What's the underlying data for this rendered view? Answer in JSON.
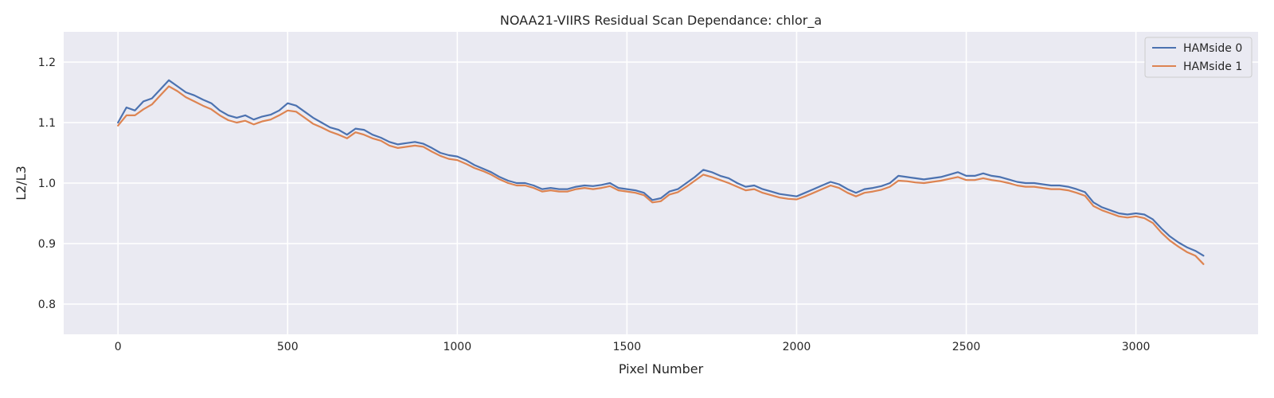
{
  "chart_data": {
    "type": "line",
    "title": "NOAA21-VIIRS Residual Scan Dependance: chlor_a",
    "xlabel": "Pixel Number",
    "ylabel": "L2/L3",
    "xlim": [
      -160,
      3360
    ],
    "ylim": [
      0.75,
      1.25
    ],
    "xticks": [
      0,
      500,
      1000,
      1500,
      2000,
      2500,
      3000
    ],
    "yticks": [
      0.8,
      0.9,
      1.0,
      1.1,
      1.2
    ],
    "xtick_labels": [
      "0",
      "500",
      "1000",
      "1500",
      "2000",
      "2500",
      "3000"
    ],
    "ytick_labels": [
      "0.8",
      "0.9",
      "1.0",
      "1.1",
      "1.2"
    ],
    "grid": true,
    "legend_position": "top-right",
    "x": [
      0,
      25,
      50,
      75,
      100,
      125,
      150,
      175,
      200,
      225,
      250,
      275,
      300,
      325,
      350,
      375,
      400,
      425,
      450,
      475,
      500,
      525,
      550,
      575,
      600,
      625,
      650,
      675,
      700,
      725,
      750,
      775,
      800,
      825,
      850,
      875,
      900,
      925,
      950,
      975,
      1000,
      1025,
      1050,
      1075,
      1100,
      1125,
      1150,
      1175,
      1200,
      1225,
      1250,
      1275,
      1300,
      1325,
      1350,
      1375,
      1400,
      1425,
      1450,
      1475,
      1500,
      1525,
      1550,
      1575,
      1600,
      1625,
      1650,
      1675,
      1700,
      1725,
      1750,
      1775,
      1800,
      1825,
      1850,
      1875,
      1900,
      1925,
      1950,
      1975,
      2000,
      2025,
      2050,
      2075,
      2100,
      2125,
      2150,
      2175,
      2200,
      2225,
      2250,
      2275,
      2300,
      2325,
      2350,
      2375,
      2400,
      2425,
      2450,
      2475,
      2500,
      2525,
      2550,
      2575,
      2600,
      2625,
      2650,
      2675,
      2700,
      2725,
      2750,
      2775,
      2800,
      2825,
      2850,
      2875,
      2900,
      2925,
      2950,
      2975,
      3000,
      3025,
      3050,
      3075,
      3100,
      3125,
      3150,
      3175,
      3199
    ],
    "series": [
      {
        "name": "HAMside 0",
        "color": "#4c72b0",
        "values": [
          1.1,
          1.125,
          1.12,
          1.135,
          1.14,
          1.155,
          1.17,
          1.16,
          1.15,
          1.145,
          1.138,
          1.132,
          1.12,
          1.112,
          1.108,
          1.112,
          1.105,
          1.11,
          1.113,
          1.12,
          1.132,
          1.128,
          1.118,
          1.108,
          1.1,
          1.092,
          1.088,
          1.08,
          1.09,
          1.088,
          1.08,
          1.075,
          1.068,
          1.064,
          1.066,
          1.068,
          1.065,
          1.058,
          1.05,
          1.046,
          1.044,
          1.038,
          1.03,
          1.024,
          1.018,
          1.01,
          1.004,
          1.0,
          1.0,
          0.996,
          0.99,
          0.992,
          0.99,
          0.99,
          0.994,
          0.996,
          0.995,
          0.997,
          1.0,
          0.992,
          0.99,
          0.988,
          0.984,
          0.972,
          0.975,
          0.986,
          0.99,
          1.0,
          1.01,
          1.022,
          1.018,
          1.012,
          1.008,
          1.0,
          0.994,
          0.996,
          0.99,
          0.986,
          0.982,
          0.98,
          0.978,
          0.984,
          0.99,
          0.996,
          1.002,
          0.998,
          0.99,
          0.984,
          0.99,
          0.992,
          0.995,
          1.0,
          1.012,
          1.01,
          1.008,
          1.006,
          1.008,
          1.01,
          1.014,
          1.018,
          1.012,
          1.012,
          1.016,
          1.012,
          1.01,
          1.006,
          1.002,
          1.0,
          1.0,
          0.998,
          0.996,
          0.996,
          0.994,
          0.99,
          0.985,
          0.968,
          0.96,
          0.955,
          0.95,
          0.948,
          0.95,
          0.948,
          0.94,
          0.925,
          0.912,
          0.902,
          0.894,
          0.888,
          0.88
        ]
      },
      {
        "name": "HAMside 1",
        "color": "#dd8452",
        "values": [
          1.095,
          1.112,
          1.112,
          1.122,
          1.13,
          1.145,
          1.16,
          1.152,
          1.142,
          1.135,
          1.128,
          1.122,
          1.112,
          1.104,
          1.1,
          1.103,
          1.097,
          1.102,
          1.105,
          1.112,
          1.12,
          1.118,
          1.108,
          1.098,
          1.092,
          1.085,
          1.08,
          1.074,
          1.084,
          1.08,
          1.074,
          1.07,
          1.062,
          1.058,
          1.06,
          1.062,
          1.06,
          1.052,
          1.045,
          1.04,
          1.038,
          1.032,
          1.025,
          1.02,
          1.014,
          1.006,
          1.0,
          0.996,
          0.996,
          0.992,
          0.986,
          0.988,
          0.986,
          0.986,
          0.99,
          0.992,
          0.99,
          0.992,
          0.995,
          0.988,
          0.986,
          0.984,
          0.98,
          0.968,
          0.97,
          0.981,
          0.985,
          0.994,
          1.004,
          1.014,
          1.01,
          1.005,
          1.0,
          0.994,
          0.988,
          0.99,
          0.984,
          0.98,
          0.976,
          0.974,
          0.973,
          0.978,
          0.984,
          0.99,
          0.996,
          0.992,
          0.984,
          0.978,
          0.984,
          0.986,
          0.989,
          0.994,
          1.004,
          1.003,
          1.001,
          1.0,
          1.002,
          1.004,
          1.007,
          1.01,
          1.005,
          1.005,
          1.008,
          1.005,
          1.003,
          1.0,
          0.996,
          0.994,
          0.994,
          0.992,
          0.99,
          0.99,
          0.988,
          0.984,
          0.979,
          0.962,
          0.955,
          0.95,
          0.945,
          0.943,
          0.945,
          0.942,
          0.934,
          0.918,
          0.905,
          0.895,
          0.886,
          0.88,
          0.866
        ]
      }
    ]
  }
}
